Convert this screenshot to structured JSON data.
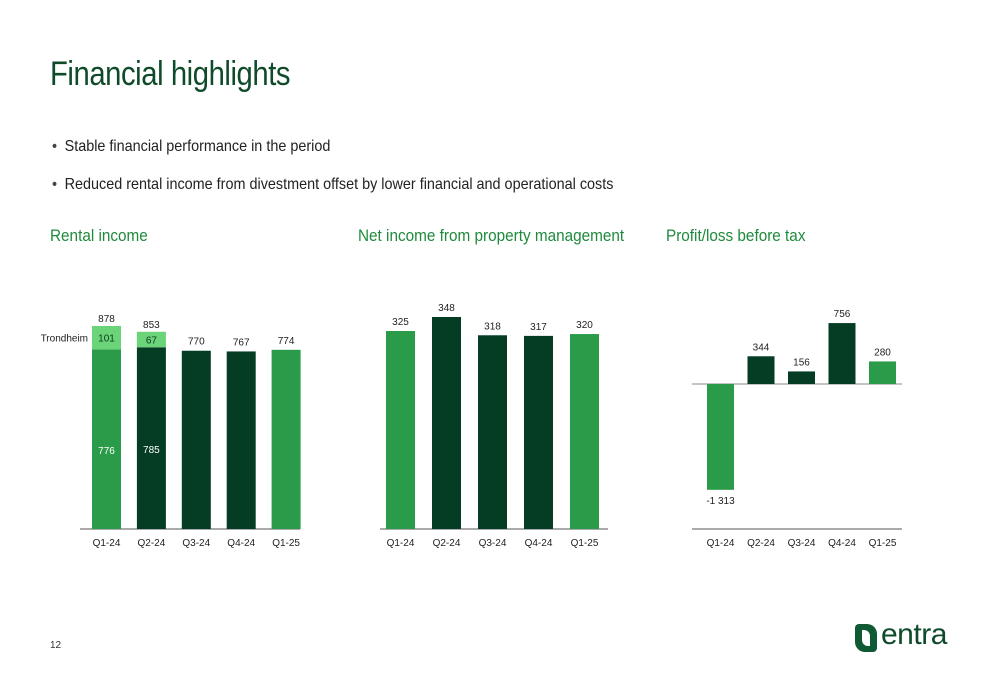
{
  "page": {
    "title": "Financial highlights",
    "bullets": [
      "Stable financial performance in the period",
      "Reduced rental income from divestment offset by lower financial and operational costs"
    ],
    "page_number": "12",
    "logo_text": "entra"
  },
  "colors": {
    "dark_green": "#043d24",
    "green": "#2a9b48",
    "light_green": "#6cd478",
    "title_green": "#0f4b2a",
    "subtitle_green": "#1f8a3c"
  },
  "chart_data": [
    {
      "type": "bar",
      "stacked": true,
      "title": "Rental income",
      "categories": [
        "Q1-24",
        "Q2-24",
        "Q3-24",
        "Q4-24",
        "Q1-25"
      ],
      "totals": [
        "878",
        "853",
        "770",
        "767",
        "774"
      ],
      "series": [
        {
          "values": [
            776,
            785,
            770,
            767,
            774
          ],
          "labels": [
            "776",
            "785",
            "",
            "",
            ""
          ]
        },
        {
          "name": "Trondheim",
          "values": [
            101,
            67,
            0,
            0,
            0
          ],
          "labels": [
            "101",
            "67",
            "",
            "",
            ""
          ]
        }
      ],
      "bar_colors": [
        "#2a9b48",
        "#043d24",
        "#043d24",
        "#043d24",
        "#2a9b48"
      ],
      "ylim": [
        0,
        1000
      ],
      "grid": false
    },
    {
      "type": "bar",
      "title": "Net income from property management",
      "categories": [
        "Q1-24",
        "Q2-24",
        "Q3-24",
        "Q4-24",
        "Q1-25"
      ],
      "values": [
        325,
        348,
        318,
        317,
        320
      ],
      "labels": [
        "325",
        "348",
        "318",
        "317",
        "320"
      ],
      "bar_colors": [
        "#2a9b48",
        "#043d24",
        "#043d24",
        "#043d24",
        "#2a9b48"
      ],
      "ylim": [
        0,
        400
      ],
      "grid": false
    },
    {
      "type": "bar",
      "title": "Profit/loss before tax",
      "categories": [
        "Q1-24",
        "Q2-24",
        "Q3-24",
        "Q4-24",
        "Q1-25"
      ],
      "values": [
        -1313,
        344,
        156,
        756,
        280
      ],
      "labels": [
        "-1 313",
        "344",
        "156",
        "756",
        "280"
      ],
      "bar_colors": [
        "#2a9b48",
        "#043d24",
        "#043d24",
        "#043d24",
        "#2a9b48"
      ],
      "ylim": [
        -1800,
        1100
      ],
      "grid": false
    }
  ]
}
